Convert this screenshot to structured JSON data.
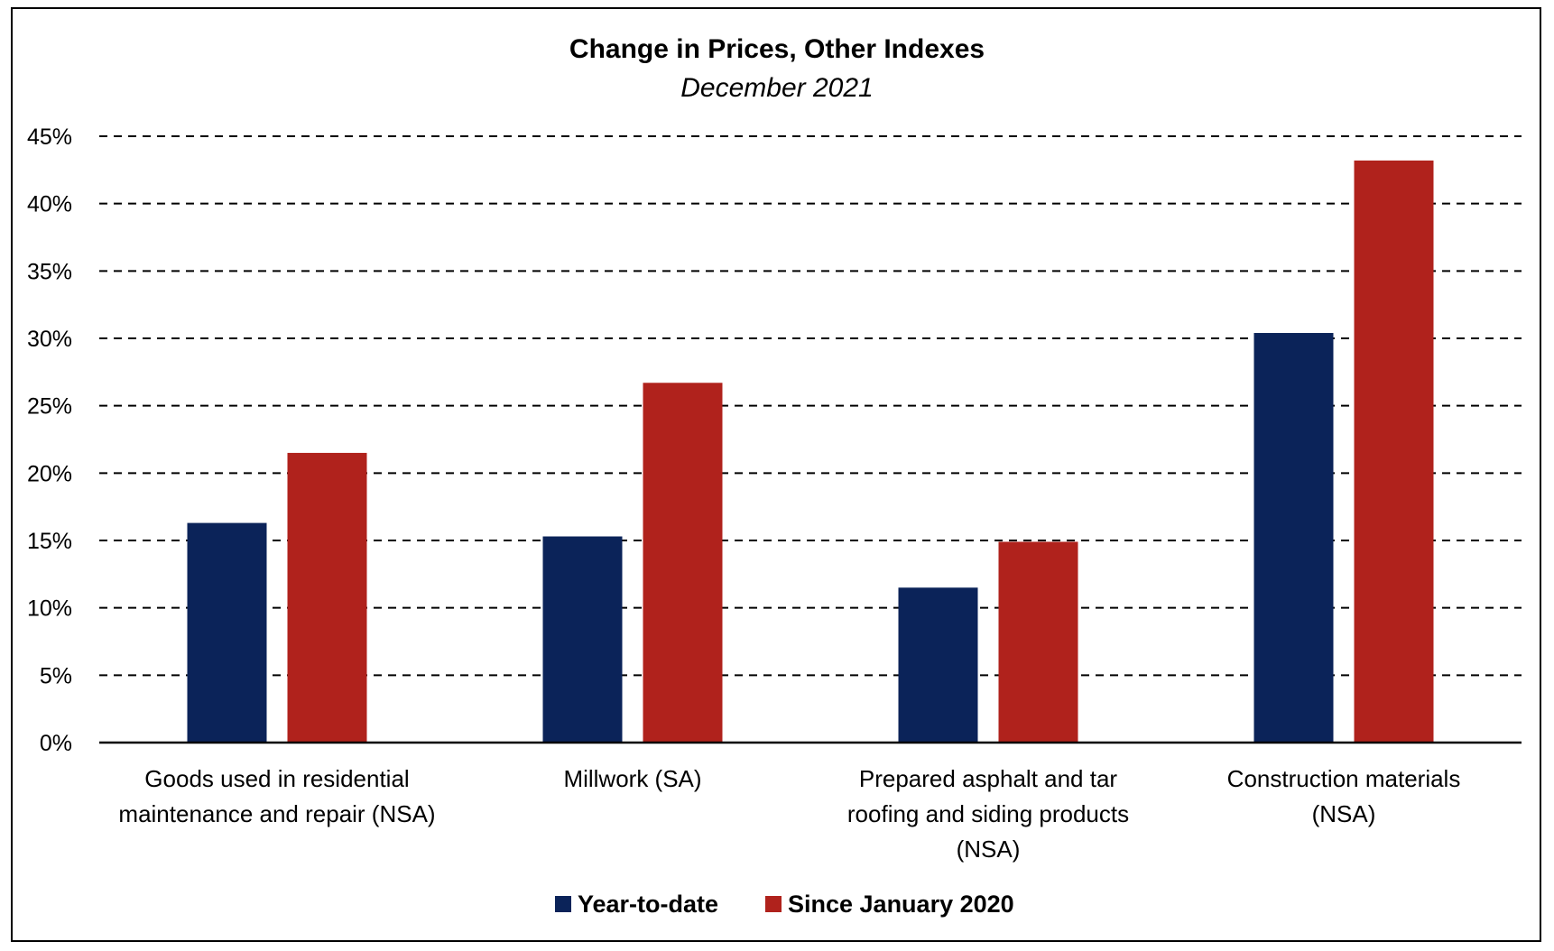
{
  "chart_data": {
    "type": "bar",
    "title": "Change in Prices, Other Indexes",
    "subtitle": "December 2021",
    "categories": [
      [
        "Goods used in residential",
        "maintenance and repair (NSA)"
      ],
      [
        "Millwork (SA)"
      ],
      [
        "Prepared asphalt and tar",
        "roofing and siding products",
        "(NSA)"
      ],
      [
        "Construction materials",
        "(NSA)"
      ]
    ],
    "series": [
      {
        "name": "Year-to-date",
        "color": "#0b2359",
        "values": [
          16.3,
          15.3,
          11.5,
          30.4
        ]
      },
      {
        "name": "Since January 2020",
        "color": "#b0221c",
        "values": [
          21.5,
          26.7,
          14.9,
          43.2
        ]
      }
    ],
    "yticks": [
      "0%",
      "5%",
      "10%",
      "15%",
      "20%",
      "25%",
      "30%",
      "35%",
      "40%",
      "45%"
    ],
    "ylim": [
      0,
      45
    ],
    "xlabel": "",
    "ylabel": "",
    "grid": "dashed-horizontal",
    "legend": "bottom-center"
  }
}
